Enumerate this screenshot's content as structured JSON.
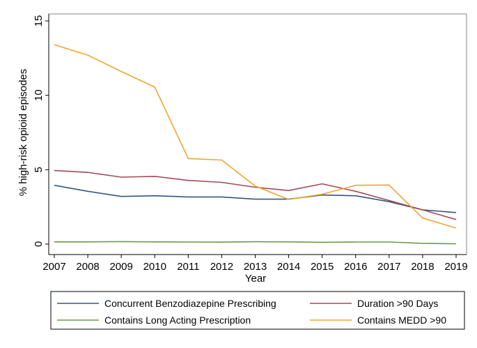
{
  "chart_data": {
    "type": "line",
    "xlabel": "Year",
    "ylabel": "% high-risk opioid episodes",
    "x": [
      2007,
      2008,
      2009,
      2010,
      2011,
      2012,
      2013,
      2014,
      2015,
      2016,
      2017,
      2018,
      2019
    ],
    "x_ticks": [
      "2007",
      "2008",
      "2009",
      "2010",
      "2011",
      "2012",
      "2013",
      "2014",
      "2015",
      "2016",
      "2017",
      "2018",
      "2019"
    ],
    "y_ticks": [
      "0",
      "5",
      "10",
      "15"
    ],
    "ylim": [
      0,
      15
    ],
    "grid": false,
    "legend_position": "bottom",
    "series": [
      {
        "name": "Concurrent Benzodiazepine Prescribing",
        "color": "#34577a",
        "values": [
          3.95,
          3.55,
          3.2,
          3.25,
          3.17,
          3.17,
          3.02,
          3.02,
          3.3,
          3.25,
          2.85,
          2.3,
          2.12
        ]
      },
      {
        "name": "Duration >90 Days",
        "color": "#a04b58",
        "values": [
          4.95,
          4.82,
          4.5,
          4.55,
          4.28,
          4.15,
          3.82,
          3.6,
          4.05,
          3.55,
          2.93,
          2.3,
          1.65
        ]
      },
      {
        "name": "Contains Long Acting Prescription",
        "color": "#6a9c4a",
        "values": [
          0.15,
          0.15,
          0.17,
          0.15,
          0.14,
          0.13,
          0.16,
          0.15,
          0.12,
          0.14,
          0.14,
          0.05,
          0.02
        ]
      },
      {
        "name": "Contains MEDD >90",
        "color": "#f0a430",
        "values": [
          13.4,
          12.7,
          11.6,
          10.55,
          5.75,
          5.65,
          3.9,
          3.0,
          3.35,
          3.95,
          3.97,
          1.75,
          1.08
        ]
      }
    ]
  }
}
